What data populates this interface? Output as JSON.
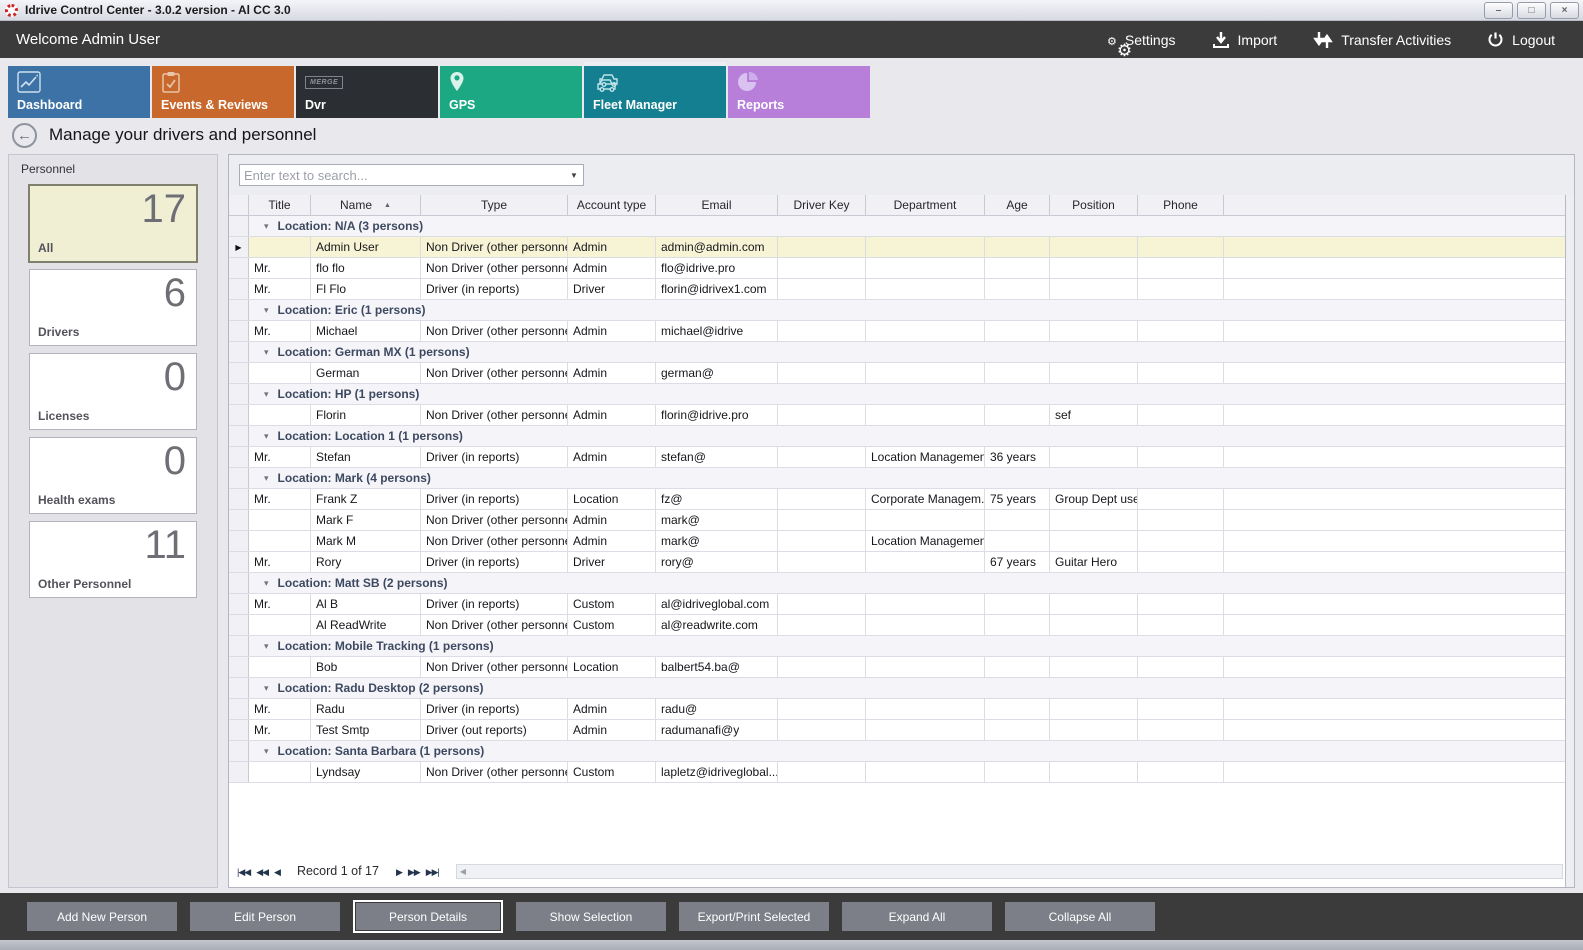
{
  "window": {
    "title": "Idrive Control Center - 3.0.2 version - Al CC 3.0",
    "controls": {
      "minimize": "–",
      "maximize": "□",
      "close": "×"
    }
  },
  "topbar": {
    "welcome": "Welcome Admin User",
    "actions": [
      {
        "id": "settings",
        "label": "Settings",
        "icon": "gears-icon"
      },
      {
        "id": "import",
        "label": "Import",
        "icon": "download-icon"
      },
      {
        "id": "transfer-activities",
        "label": "Transfer Activities",
        "icon": "transfer-arrows-icon"
      },
      {
        "id": "logout",
        "label": "Logout",
        "icon": "power-icon"
      }
    ]
  },
  "nav_tiles": [
    {
      "id": "dashboard",
      "label": "Dashboard",
      "color": "#3d72a6",
      "icon": "line-chart-icon",
      "selected": false
    },
    {
      "id": "events-reviews",
      "label": "Events & Reviews",
      "color": "#c8682c",
      "icon": "clipboard-icon",
      "selected": false
    },
    {
      "id": "dvr",
      "label": "Dvr",
      "color": "#2b2e32",
      "icon": "merge-badge-icon",
      "badge": "MERGE",
      "selected": false
    },
    {
      "id": "gps",
      "label": "GPS",
      "color": "#1da884",
      "icon": "map-pin-icon",
      "selected": false
    },
    {
      "id": "fleet-manager",
      "label": "Fleet Manager",
      "color": "#147f90",
      "icon": "cars-icon",
      "selected": true
    },
    {
      "id": "reports",
      "label": "Reports",
      "color": "#b77fda",
      "icon": "pie-chart-icon",
      "selected": false
    }
  ],
  "breadcrumb": {
    "title": "Manage your drivers and personnel",
    "back_glyph": "←"
  },
  "sidebar": {
    "header": "Personnel",
    "cards": [
      {
        "label": "All",
        "count": "17",
        "selected": true
      },
      {
        "label": "Drivers",
        "count": "6",
        "selected": false
      },
      {
        "label": "Licenses",
        "count": "0",
        "selected": false
      },
      {
        "label": "Health exams",
        "count": "0",
        "selected": false
      },
      {
        "label": "Other Personnel",
        "count": "11",
        "selected": false
      }
    ]
  },
  "search": {
    "placeholder": "Enter text to search...",
    "value": "",
    "dropdown_glyph": "▼"
  },
  "table": {
    "columns": [
      "Title",
      "Name",
      "Type",
      "Account type",
      "Email",
      "Driver Key",
      "Department",
      "Age",
      "Position",
      "Phone"
    ],
    "sort_column": "Name",
    "sort_glyph": "▲",
    "group_caret_glyph": "▾",
    "row_indicator_glyph": "▶",
    "groups": [
      {
        "label": "Location: N/A (3 persons)",
        "rows": [
          {
            "title": "",
            "name": "Admin User",
            "type": "Non Driver (other personnel)",
            "account": "Admin",
            "email": "admin@admin.com",
            "selected": true
          },
          {
            "title": "Mr.",
            "name": "flo flo",
            "type": "Non Driver (other personnel)",
            "account": "Admin",
            "email": "flo@idrive.pro"
          },
          {
            "title": "Mr.",
            "name": "Fl Flo",
            "type": "Driver (in reports)",
            "account": "Driver",
            "email": "florin@idrivex1.com"
          }
        ]
      },
      {
        "label": "Location: Eric (1 persons)",
        "rows": [
          {
            "title": "Mr.",
            "name": "Michael",
            "type": "Non Driver (other personnel)",
            "account": "Admin",
            "email": "michael@idrive"
          }
        ]
      },
      {
        "label": "Location: German MX (1 persons)",
        "rows": [
          {
            "title": "",
            "name": "German",
            "type": "Non Driver (other personnel)",
            "account": "Admin",
            "email": "german@"
          }
        ]
      },
      {
        "label": "Location: HP (1 persons)",
        "rows": [
          {
            "title": "",
            "name": "Florin",
            "type": "Non Driver (other personnel)",
            "account": "Admin",
            "email": "florin@idrive.pro",
            "position": "sef"
          }
        ]
      },
      {
        "label": "Location: Location 1 (1 persons)",
        "rows": [
          {
            "title": "Mr.",
            "name": "Stefan",
            "type": "Driver (in reports)",
            "account": "Admin",
            "email": "stefan@",
            "department": "Location Management",
            "age": "36 years"
          }
        ]
      },
      {
        "label": "Location: Mark (4 persons)",
        "rows": [
          {
            "title": "Mr.",
            "name": "Frank Z",
            "type": "Driver (in reports)",
            "account": "Location",
            "email": "fz@",
            "department": "Corporate Managem...",
            "age": "75 years",
            "position": "Group Dept user"
          },
          {
            "title": "",
            "name": "Mark F",
            "type": "Non Driver (other personnel)",
            "account": "Admin",
            "email": "mark@"
          },
          {
            "title": "",
            "name": "Mark M",
            "type": "Non Driver (other personnel)",
            "account": "Admin",
            "email": "mark@",
            "department": "Location Management"
          },
          {
            "title": "Mr.",
            "name": "Rory",
            "type": "Driver (in reports)",
            "account": "Driver",
            "email": "rory@",
            "age": "67 years",
            "position": "Guitar Hero"
          }
        ]
      },
      {
        "label": "Location: Matt SB (2 persons)",
        "rows": [
          {
            "title": "Mr.",
            "name": "Al B",
            "type": "Driver (in reports)",
            "account": "Custom",
            "email": "al@idriveglobal.com"
          },
          {
            "title": "",
            "name": "Al ReadWrite",
            "type": "Non Driver (other personnel)",
            "account": "Custom",
            "email": "al@readwrite.com"
          }
        ]
      },
      {
        "label": "Location: Mobile Tracking (1 persons)",
        "rows": [
          {
            "title": "",
            "name": "Bob",
            "type": "Non Driver (other personnel)",
            "account": "Location",
            "email": "balbert54.ba@"
          }
        ]
      },
      {
        "label": "Location: Radu Desktop (2 persons)",
        "rows": [
          {
            "title": "Mr.",
            "name": "Radu",
            "type": "Driver (in reports)",
            "account": "Admin",
            "email": "radu@"
          },
          {
            "title": "Mr.",
            "name": "Test Smtp",
            "type": "Driver (out reports)",
            "account": "Admin",
            "email": "radumanafi@y"
          }
        ]
      },
      {
        "label": "Location: Santa Barbara (1 persons)",
        "rows": [
          {
            "title": "",
            "name": "Lyndsay",
            "type": "Non Driver (other personnel)",
            "account": "Custom",
            "email": "lapletz@idriveglobal...."
          }
        ]
      }
    ]
  },
  "record_nav": {
    "label": "Record 1 of 17",
    "left_buttons": [
      {
        "name": "nav-first",
        "glyph": "|◀◀"
      },
      {
        "name": "nav-prev-page",
        "glyph": "◀◀"
      },
      {
        "name": "nav-prev",
        "glyph": "◀"
      }
    ],
    "right_buttons": [
      {
        "name": "nav-next",
        "glyph": "▶"
      },
      {
        "name": "nav-next-page",
        "glyph": "▶▶"
      },
      {
        "name": "nav-last",
        "glyph": "▶▶|"
      }
    ],
    "hscroll_left_glyph": "◀"
  },
  "footer_buttons": [
    {
      "label": "Add New Person",
      "focused": false
    },
    {
      "label": "Edit Person",
      "focused": false
    },
    {
      "label": "Person Details",
      "focused": true
    },
    {
      "label": "Show Selection",
      "focused": false
    },
    {
      "label": "Export/Print Selected",
      "focused": false
    },
    {
      "label": "Expand All",
      "focused": false
    },
    {
      "label": "Collapse All",
      "focused": false
    }
  ]
}
